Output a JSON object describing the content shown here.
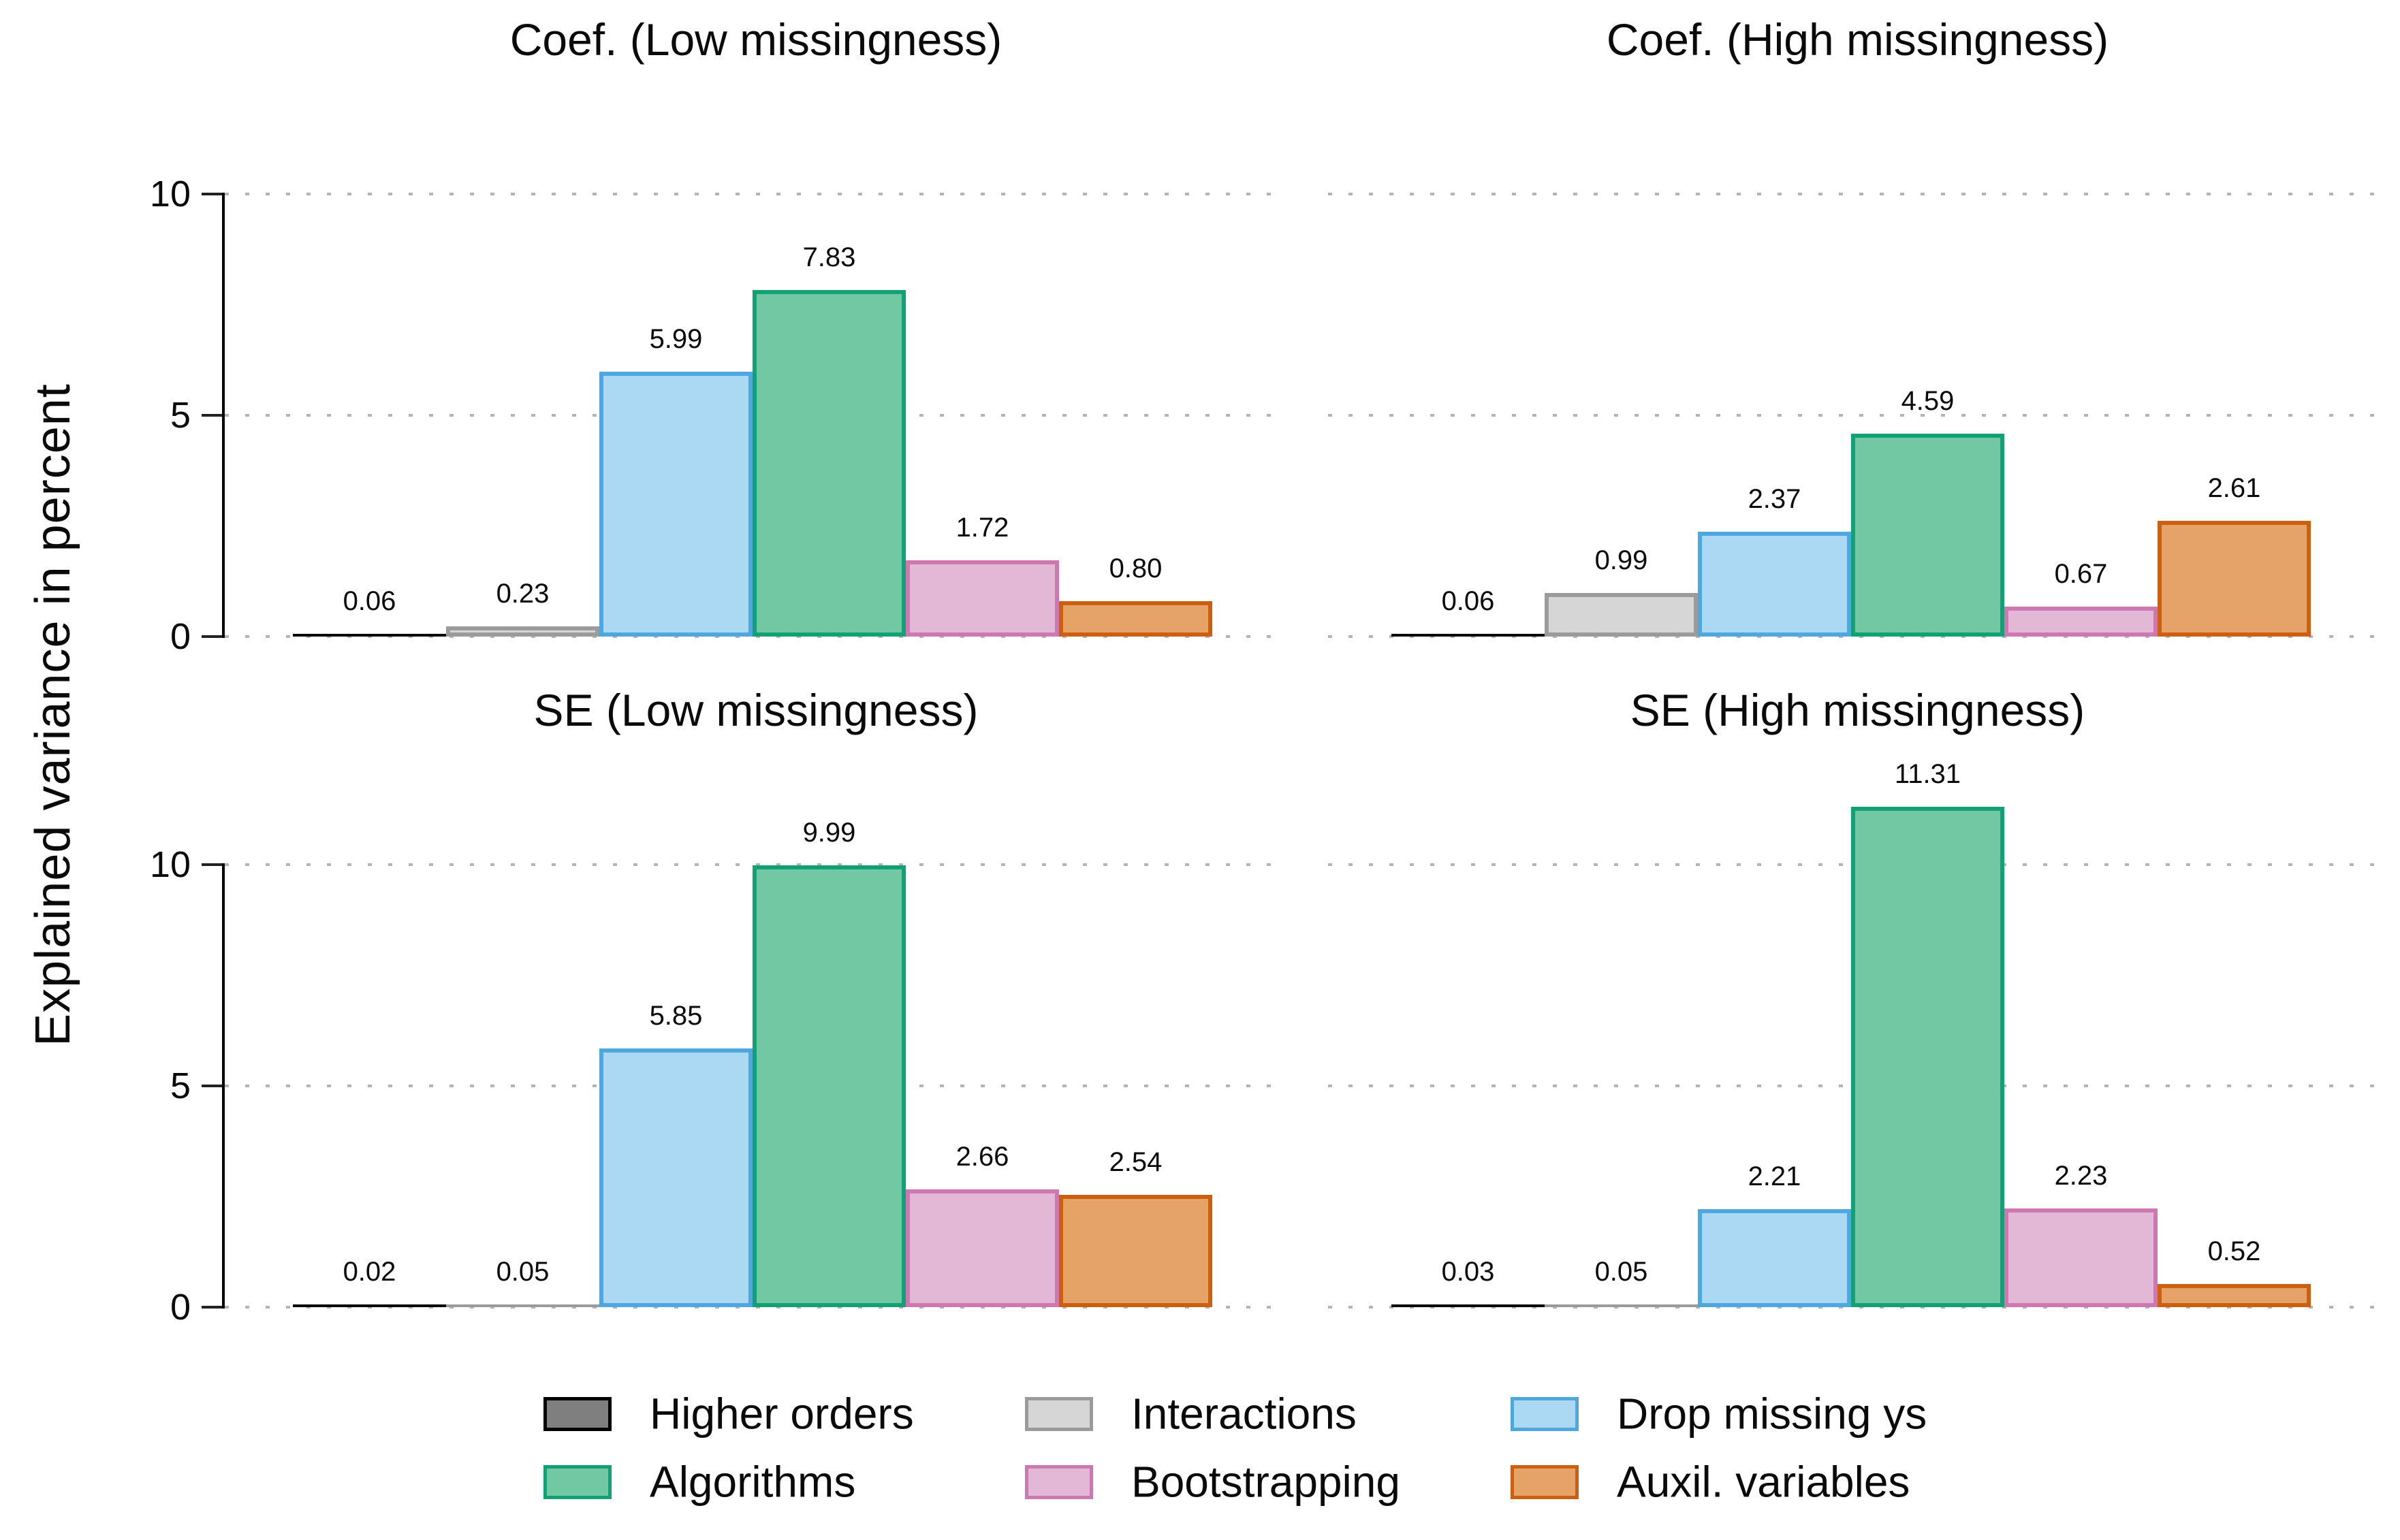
{
  "figure": {
    "y_axis_title": "Explained variance in percent"
  },
  "legend": {
    "items": [
      {
        "label": "Higher orders",
        "fill": "#7f7f7f",
        "border": "#000000"
      },
      {
        "label": "Interactions",
        "fill": "#d6d6d6",
        "border": "#9b9b9b"
      },
      {
        "label": "Drop missing ys",
        "fill": "#abd9f4",
        "border": "#4fa7df"
      },
      {
        "label": "Algorithms",
        "fill": "#72c8a2",
        "border": "#12a075"
      },
      {
        "label": "Bootstrapping",
        "fill": "#e2b8d6",
        "border": "#ce78b2"
      },
      {
        "label": "Auxil. variables",
        "fill": "#e6a368",
        "border": "#cc5f10"
      }
    ]
  },
  "chart_data": [
    {
      "type": "bar",
      "title": "Coef. (Low missingness)",
      "categories": [
        "Higher orders",
        "Interactions",
        "Drop missing ys",
        "Algorithms",
        "Bootstrapping",
        "Auxil. variables"
      ],
      "values": [
        0.06,
        0.23,
        5.99,
        7.83,
        1.72,
        0.8
      ],
      "labels": [
        "0.06",
        "0.23",
        "5.99",
        "7.83",
        "1.72",
        "0.80"
      ],
      "ylabel": "Explained variance in percent",
      "ylim": [
        0,
        10
      ],
      "yticks": [
        0,
        5,
        10
      ],
      "grid": "dotted horizontal",
      "show_y_axis": true
    },
    {
      "type": "bar",
      "title": "Coef. (High missingness)",
      "categories": [
        "Higher orders",
        "Interactions",
        "Drop missing ys",
        "Algorithms",
        "Bootstrapping",
        "Auxil. variables"
      ],
      "values": [
        0.06,
        0.99,
        2.37,
        4.59,
        0.67,
        2.61
      ],
      "labels": [
        "0.06",
        "0.99",
        "2.37",
        "4.59",
        "0.67",
        "2.61"
      ],
      "ylabel": "Explained variance in percent",
      "ylim": [
        0,
        10
      ],
      "yticks": [
        0,
        5,
        10
      ],
      "grid": "dotted horizontal",
      "show_y_axis": false
    },
    {
      "type": "bar",
      "title": "SE (Low missingness)",
      "categories": [
        "Higher orders",
        "Interactions",
        "Drop missing ys",
        "Algorithms",
        "Bootstrapping",
        "Auxil. variables"
      ],
      "values": [
        0.02,
        0.05,
        5.85,
        9.99,
        2.66,
        2.54
      ],
      "labels": [
        "0.02",
        "0.05",
        "5.85",
        "9.99",
        "2.66",
        "2.54"
      ],
      "ylabel": "Explained variance in percent",
      "ylim": [
        0,
        10
      ],
      "yticks": [
        0,
        5,
        10
      ],
      "grid": "dotted horizontal",
      "show_y_axis": true
    },
    {
      "type": "bar",
      "title": "SE (High missingness)",
      "categories": [
        "Higher orders",
        "Interactions",
        "Drop missing ys",
        "Algorithms",
        "Bootstrapping",
        "Auxil. variables"
      ],
      "values": [
        0.03,
        0.05,
        2.21,
        11.31,
        2.23,
        0.52
      ],
      "labels": [
        "0.03",
        "0.05",
        "2.21",
        "11.31",
        "2.23",
        "0.52"
      ],
      "ylabel": "Explained variance in percent",
      "ylim": [
        0,
        10
      ],
      "yticks": [
        0,
        5,
        10
      ],
      "grid": "dotted horizontal",
      "show_y_axis": false
    }
  ]
}
